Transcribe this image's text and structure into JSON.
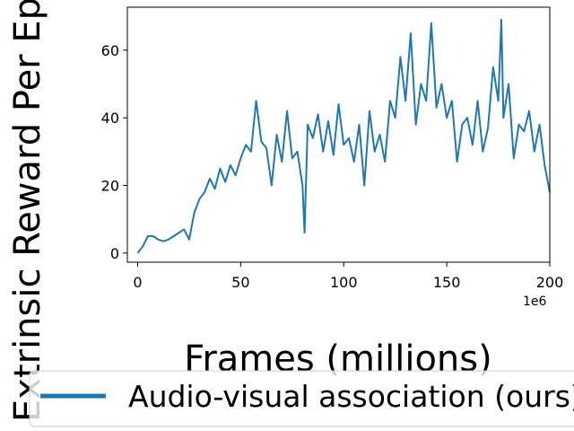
{
  "chart_data": {
    "type": "line",
    "xlabel": "Frames (millions)",
    "ylabel": "Extrinsic Reward Per Episode",
    "x_offset_label": "1e6",
    "x": [
      0,
      2.5,
      5,
      7.5,
      10,
      12.5,
      15,
      17.5,
      20,
      22.5,
      25,
      27.5,
      30,
      32.5,
      35,
      37.5,
      40,
      42.5,
      45,
      47.5,
      50,
      52.5,
      55,
      57.5,
      60,
      62.5,
      65,
      67.5,
      70,
      72.5,
      75,
      77.5,
      80,
      81,
      82.5,
      85,
      87.5,
      90,
      92.5,
      95,
      97.5,
      100,
      102.5,
      105,
      107.5,
      110,
      112.5,
      115,
      117.5,
      120,
      122.5,
      125,
      127.5,
      130,
      132.5,
      135,
      137.5,
      140,
      142.5,
      145,
      147.5,
      150,
      152.5,
      155,
      157.5,
      160,
      162.5,
      165,
      167.5,
      170,
      172.5,
      175,
      176.5,
      177.5,
      180,
      182.5,
      185,
      187.5,
      190,
      192.5,
      195,
      197.5,
      200
    ],
    "series": [
      {
        "name": "Audio-visual association (ours)",
        "color": "#1f77b4",
        "values": [
          0,
          2,
          5,
          5,
          4,
          3.5,
          4,
          5,
          6,
          7,
          4,
          12,
          16,
          18,
          22,
          19,
          25,
          21,
          26,
          23,
          28,
          32,
          30,
          45,
          33,
          31,
          20,
          35,
          27,
          42,
          28,
          30,
          20,
          6,
          38,
          34,
          41,
          30,
          39,
          29,
          44,
          32,
          34,
          27,
          38,
          20,
          42,
          30,
          35,
          27,
          45,
          40,
          58,
          45,
          65,
          38,
          50,
          45,
          68,
          43,
          50,
          40,
          45,
          27,
          38,
          40,
          32,
          45,
          30,
          37,
          55,
          45,
          69,
          40,
          50,
          28,
          38,
          36,
          42,
          30,
          38,
          26,
          18
        ]
      }
    ],
    "xlim": [
      -5,
      200
    ],
    "ylim": [
      -2.7,
      72.7
    ],
    "xticks": [
      0,
      50,
      100,
      150,
      200
    ],
    "yticks": [
      0,
      20,
      40,
      60
    ]
  }
}
